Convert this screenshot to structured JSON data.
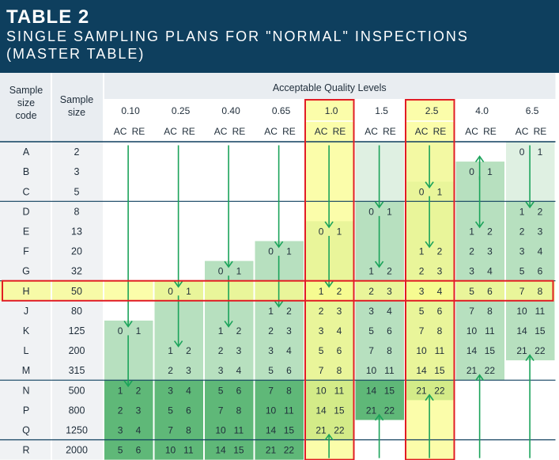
{
  "title": {
    "line1": "TABLE 2",
    "line2": "SINGLE SAMPLING PLANS FOR \"NORMAL\" INSPECTIONS",
    "line3": "(MASTER TABLE)"
  },
  "headers": {
    "code": [
      "Sample",
      "size",
      "code"
    ],
    "size": [
      "Sample",
      "size"
    ],
    "aql_title": "Acceptable Quality Levels",
    "ac": "AC",
    "re": "RE"
  },
  "aql_levels": [
    "0.10",
    "0.25",
    "0.40",
    "0.65",
    "1.0",
    "1.5",
    "2.5",
    "4.0",
    "6.5"
  ],
  "rows": [
    {
      "code": "A",
      "size": "2"
    },
    {
      "code": "B",
      "size": "3"
    },
    {
      "code": "C",
      "size": "5"
    },
    {
      "code": "D",
      "size": "8"
    },
    {
      "code": "E",
      "size": "13"
    },
    {
      "code": "F",
      "size": "20"
    },
    {
      "code": "G",
      "size": "32"
    },
    {
      "code": "H",
      "size": "50"
    },
    {
      "code": "J",
      "size": "80"
    },
    {
      "code": "K",
      "size": "125"
    },
    {
      "code": "L",
      "size": "200"
    },
    {
      "code": "M",
      "size": "315"
    },
    {
      "code": "N",
      "size": "500"
    },
    {
      "code": "P",
      "size": "800"
    },
    {
      "code": "Q",
      "size": "1250"
    },
    {
      "code": "R",
      "size": "2000"
    }
  ],
  "plans": [
    {
      "col": 0,
      "row": 9,
      "ac": "0",
      "re": "1"
    },
    {
      "col": 0,
      "row": 12,
      "ac": "1",
      "re": "2"
    },
    {
      "col": 0,
      "row": 13,
      "ac": "2",
      "re": "3"
    },
    {
      "col": 0,
      "row": 14,
      "ac": "3",
      "re": "4"
    },
    {
      "col": 0,
      "row": 15,
      "ac": "5",
      "re": "6"
    },
    {
      "col": 1,
      "row": 7,
      "ac": "0",
      "re": "1"
    },
    {
      "col": 1,
      "row": 10,
      "ac": "1",
      "re": "2"
    },
    {
      "col": 1,
      "row": 11,
      "ac": "2",
      "re": "3"
    },
    {
      "col": 1,
      "row": 12,
      "ac": "3",
      "re": "4"
    },
    {
      "col": 1,
      "row": 13,
      "ac": "5",
      "re": "6"
    },
    {
      "col": 1,
      "row": 14,
      "ac": "7",
      "re": "8"
    },
    {
      "col": 1,
      "row": 15,
      "ac": "10",
      "re": "11"
    },
    {
      "col": 2,
      "row": 6,
      "ac": "0",
      "re": "1"
    },
    {
      "col": 2,
      "row": 9,
      "ac": "1",
      "re": "2"
    },
    {
      "col": 2,
      "row": 10,
      "ac": "2",
      "re": "3"
    },
    {
      "col": 2,
      "row": 11,
      "ac": "3",
      "re": "4"
    },
    {
      "col": 2,
      "row": 12,
      "ac": "5",
      "re": "6"
    },
    {
      "col": 2,
      "row": 13,
      "ac": "7",
      "re": "8"
    },
    {
      "col": 2,
      "row": 14,
      "ac": "10",
      "re": "11"
    },
    {
      "col": 2,
      "row": 15,
      "ac": "14",
      "re": "15"
    },
    {
      "col": 3,
      "row": 5,
      "ac": "0",
      "re": "1"
    },
    {
      "col": 3,
      "row": 8,
      "ac": "1",
      "re": "2"
    },
    {
      "col": 3,
      "row": 9,
      "ac": "2",
      "re": "3"
    },
    {
      "col": 3,
      "row": 10,
      "ac": "3",
      "re": "4"
    },
    {
      "col": 3,
      "row": 11,
      "ac": "5",
      "re": "6"
    },
    {
      "col": 3,
      "row": 12,
      "ac": "7",
      "re": "8"
    },
    {
      "col": 3,
      "row": 13,
      "ac": "10",
      "re": "11"
    },
    {
      "col": 3,
      "row": 14,
      "ac": "14",
      "re": "15"
    },
    {
      "col": 3,
      "row": 15,
      "ac": "21",
      "re": "22"
    },
    {
      "col": 4,
      "row": 4,
      "ac": "0",
      "re": "1"
    },
    {
      "col": 4,
      "row": 7,
      "ac": "1",
      "re": "2"
    },
    {
      "col": 4,
      "row": 8,
      "ac": "2",
      "re": "3"
    },
    {
      "col": 4,
      "row": 9,
      "ac": "3",
      "re": "4"
    },
    {
      "col": 4,
      "row": 10,
      "ac": "5",
      "re": "6"
    },
    {
      "col": 4,
      "row": 11,
      "ac": "7",
      "re": "8"
    },
    {
      "col": 4,
      "row": 12,
      "ac": "10",
      "re": "11"
    },
    {
      "col": 4,
      "row": 13,
      "ac": "14",
      "re": "15"
    },
    {
      "col": 4,
      "row": 14,
      "ac": "21",
      "re": "22"
    },
    {
      "col": 5,
      "row": 3,
      "ac": "0",
      "re": "1"
    },
    {
      "col": 5,
      "row": 6,
      "ac": "1",
      "re": "2"
    },
    {
      "col": 5,
      "row": 7,
      "ac": "2",
      "re": "3"
    },
    {
      "col": 5,
      "row": 8,
      "ac": "3",
      "re": "4"
    },
    {
      "col": 5,
      "row": 9,
      "ac": "5",
      "re": "6"
    },
    {
      "col": 5,
      "row": 10,
      "ac": "7",
      "re": "8"
    },
    {
      "col": 5,
      "row": 11,
      "ac": "10",
      "re": "11"
    },
    {
      "col": 5,
      "row": 12,
      "ac": "14",
      "re": "15"
    },
    {
      "col": 5,
      "row": 13,
      "ac": "21",
      "re": "22"
    },
    {
      "col": 6,
      "row": 2,
      "ac": "0",
      "re": "1"
    },
    {
      "col": 6,
      "row": 5,
      "ac": "1",
      "re": "2"
    },
    {
      "col": 6,
      "row": 6,
      "ac": "2",
      "re": "3"
    },
    {
      "col": 6,
      "row": 7,
      "ac": "3",
      "re": "4"
    },
    {
      "col": 6,
      "row": 8,
      "ac": "5",
      "re": "6"
    },
    {
      "col": 6,
      "row": 9,
      "ac": "7",
      "re": "8"
    },
    {
      "col": 6,
      "row": 10,
      "ac": "10",
      "re": "11"
    },
    {
      "col": 6,
      "row": 11,
      "ac": "14",
      "re": "15"
    },
    {
      "col": 6,
      "row": 12,
      "ac": "21",
      "re": "22"
    },
    {
      "col": 7,
      "row": 1,
      "ac": "0",
      "re": "1"
    },
    {
      "col": 7,
      "row": 4,
      "ac": "1",
      "re": "2"
    },
    {
      "col": 7,
      "row": 5,
      "ac": "2",
      "re": "3"
    },
    {
      "col": 7,
      "row": 6,
      "ac": "3",
      "re": "4"
    },
    {
      "col": 7,
      "row": 7,
      "ac": "5",
      "re": "6"
    },
    {
      "col": 7,
      "row": 8,
      "ac": "7",
      "re": "8"
    },
    {
      "col": 7,
      "row": 9,
      "ac": "10",
      "re": "11"
    },
    {
      "col": 7,
      "row": 10,
      "ac": "14",
      "re": "15"
    },
    {
      "col": 7,
      "row": 11,
      "ac": "21",
      "re": "22"
    },
    {
      "col": 8,
      "row": 0,
      "ac": "0",
      "re": "1"
    },
    {
      "col": 8,
      "row": 3,
      "ac": "1",
      "re": "2"
    },
    {
      "col": 8,
      "row": 4,
      "ac": "2",
      "re": "3"
    },
    {
      "col": 8,
      "row": 5,
      "ac": "3",
      "re": "4"
    },
    {
      "col": 8,
      "row": 6,
      "ac": "5",
      "re": "6"
    },
    {
      "col": 8,
      "row": 7,
      "ac": "7",
      "re": "8"
    },
    {
      "col": 8,
      "row": 8,
      "ac": "10",
      "re": "11"
    },
    {
      "col": 8,
      "row": 9,
      "ac": "14",
      "re": "15"
    },
    {
      "col": 8,
      "row": 10,
      "ac": "21",
      "re": "22"
    }
  ],
  "arrows_down": [
    {
      "col": 0,
      "from": 0,
      "to": 9
    },
    {
      "col": 0,
      "from": 9,
      "to": 12
    },
    {
      "col": 1,
      "from": 0,
      "to": 7
    },
    {
      "col": 1,
      "from": 7,
      "to": 10
    },
    {
      "col": 2,
      "from": 0,
      "to": 6
    },
    {
      "col": 2,
      "from": 6,
      "to": 9
    },
    {
      "col": 3,
      "from": 0,
      "to": 5
    },
    {
      "col": 3,
      "from": 5,
      "to": 8
    },
    {
      "col": 4,
      "from": 0,
      "to": 4
    },
    {
      "col": 4,
      "from": 4,
      "to": 7
    },
    {
      "col": 5,
      "from": 0,
      "to": 3
    },
    {
      "col": 5,
      "from": 3,
      "to": 6
    },
    {
      "col": 6,
      "from": 0,
      "to": 2
    },
    {
      "col": 6,
      "from": 2,
      "to": 5
    },
    {
      "col": 7,
      "from": 1,
      "to": 4
    },
    {
      "col": 8,
      "from": 0,
      "to": 3
    }
  ],
  "arrows_up": [
    {
      "col": 4,
      "from": 15,
      "to": 14
    },
    {
      "col": 5,
      "from": 15,
      "to": 13
    },
    {
      "col": 6,
      "from": 15,
      "to": 12
    },
    {
      "col": 7,
      "from": 15,
      "to": 11
    },
    {
      "col": 8,
      "from": 15,
      "to": 10
    },
    {
      "col": 7,
      "from": 1,
      "to": 0
    },
    {
      "col": 8,
      "from": 0,
      "to": 0
    }
  ],
  "highlight": {
    "row_code": "H",
    "columns": [
      "1.0",
      "2.5"
    ]
  },
  "colors": {
    "header_bg": "#0e3f5e",
    "arrow": "#1ba35a",
    "highlight_border": "#e11d24",
    "highlight_fill": "#fafc8e",
    "shade_light": "#dff0e2",
    "shade_mid": "#b7e0bf",
    "shade_dark": "#8fcf9c",
    "shade_darker": "#5fb878"
  }
}
